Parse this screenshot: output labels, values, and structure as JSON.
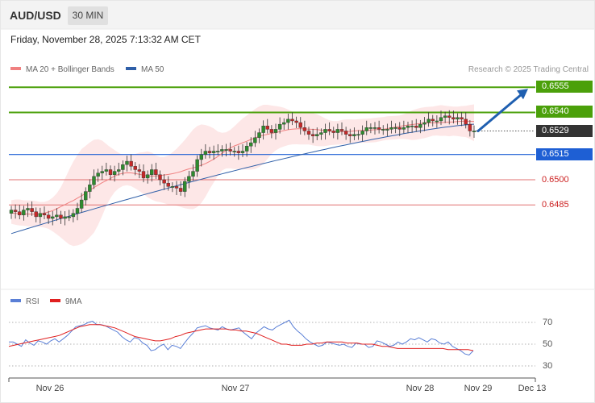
{
  "header": {
    "pair": "AUD/USD",
    "timeframe": "30 MIN"
  },
  "datetime": "Friday, November 28, 2025 7:13:32 AM CET",
  "legend": [
    {
      "label": "MA 20 + Bollinger Bands",
      "color": "#f08080"
    },
    {
      "label": "MA 50",
      "color": "#2f5fa8"
    }
  ],
  "credit": "Research © 2025 Trading Central",
  "levels": [
    {
      "label": "0.6555",
      "value": 0.6555,
      "kind": "resistance",
      "color": "#4ba00a"
    },
    {
      "label": "0.6540",
      "value": 0.654,
      "kind": "resistance",
      "color": "#4ba00a"
    },
    {
      "label": "0.6529",
      "value": 0.6529,
      "kind": "last",
      "color": "#333333"
    },
    {
      "label": "0.6515",
      "value": 0.6515,
      "kind": "pivot",
      "color": "#1e5fd4"
    },
    {
      "label": "0.6500",
      "value": 0.65,
      "kind": "support",
      "color": "#cc2222"
    },
    {
      "label": "0.6485",
      "value": 0.6485,
      "kind": "support",
      "color": "#cc2222"
    }
  ],
  "rsi_legend": [
    {
      "label": "RSI",
      "color": "#5a7fd6"
    },
    {
      "label": "9MA",
      "color": "#e02020"
    }
  ],
  "rsi_ticks": [
    "70",
    "50",
    "30"
  ],
  "x_labels": [
    "Nov 26",
    "Nov 27",
    "Nov 28",
    "Nov 29",
    "Dec 13"
  ],
  "chart_data": {
    "type": "candlestick",
    "symbol": "AUD/USD",
    "interval": "30 MIN",
    "y_range": [
      0.646,
      0.6565
    ],
    "close": [
      0.6482,
      0.6481,
      0.6479,
      0.6482,
      0.6483,
      0.6481,
      0.6478,
      0.648,
      0.6479,
      0.6477,
      0.6478,
      0.6479,
      0.6477,
      0.6478,
      0.6478,
      0.648,
      0.6483,
      0.6488,
      0.6493,
      0.6497,
      0.6502,
      0.6504,
      0.6505,
      0.6506,
      0.6503,
      0.6505,
      0.6506,
      0.6509,
      0.6511,
      0.6508,
      0.6506,
      0.6505,
      0.6501,
      0.6503,
      0.6506,
      0.6503,
      0.65,
      0.6498,
      0.6496,
      0.6496,
      0.6495,
      0.6493,
      0.6499,
      0.6502,
      0.6505,
      0.6512,
      0.6515,
      0.6517,
      0.6516,
      0.6517,
      0.6517,
      0.6518,
      0.6518,
      0.6517,
      0.6517,
      0.6516,
      0.6517,
      0.652,
      0.6522,
      0.6525,
      0.6528,
      0.6532,
      0.653,
      0.6528,
      0.653,
      0.6533,
      0.6534,
      0.6536,
      0.6535,
      0.6534,
      0.6531,
      0.6529,
      0.6527,
      0.6526,
      0.6527,
      0.6528,
      0.653,
      0.6529,
      0.6528,
      0.653,
      0.6529,
      0.6527,
      0.6526,
      0.6527,
      0.6527,
      0.6529,
      0.6531,
      0.6531,
      0.6531,
      0.653,
      0.653,
      0.653,
      0.6531,
      0.6531,
      0.653,
      0.6531,
      0.6532,
      0.6532,
      0.6531,
      0.6533,
      0.6534,
      0.6536,
      0.6535,
      0.6535,
      0.6537,
      0.6538,
      0.6537,
      0.6536,
      0.6537,
      0.6536,
      0.6533,
      0.6529,
      0.6529
    ],
    "ma20_start": 0.6466,
    "ma20_end": 0.6531,
    "ma50_start": 0.6468,
    "ma50_end": 0.6533,
    "forecast": {
      "from": 0.6529,
      "to": 0.6555
    },
    "rsi": {
      "ticks": [
        70,
        50,
        30
      ],
      "rsi_values": [
        52,
        52,
        50,
        48,
        54,
        51,
        49,
        53,
        52,
        50,
        53,
        55,
        52,
        55,
        58,
        62,
        66,
        67,
        68,
        70,
        71,
        68,
        68,
        67,
        65,
        63,
        61,
        57,
        54,
        52,
        56,
        55,
        51,
        49,
        44,
        45,
        48,
        50,
        45,
        49,
        48,
        46,
        51,
        56,
        60,
        65,
        66,
        67,
        65,
        64,
        63,
        66,
        64,
        63,
        64,
        65,
        61,
        58,
        55,
        60,
        63,
        66,
        64,
        63,
        66,
        68,
        70,
        72,
        66,
        62,
        59,
        55,
        52,
        50,
        48,
        49,
        52,
        51,
        50,
        49,
        50,
        48,
        47,
        51,
        50,
        50,
        47,
        48,
        53,
        52,
        50,
        48,
        49,
        52,
        50,
        52,
        55,
        54,
        56,
        54,
        52,
        55,
        54,
        51,
        50,
        52,
        48,
        46,
        44,
        41,
        40,
        44
      ],
      "ma_values": [
        48,
        49,
        50,
        51,
        52,
        53,
        54,
        55,
        56,
        57,
        58,
        60,
        62,
        64,
        66,
        67,
        68,
        68,
        68,
        67,
        66,
        65,
        63,
        61,
        59,
        57,
        56,
        55,
        54,
        53,
        53,
        54,
        55,
        57,
        58,
        60,
        61,
        62,
        63,
        64,
        64,
        64,
        64,
        64,
        63,
        63,
        62,
        62,
        61,
        60,
        58,
        56,
        54,
        52,
        50,
        50,
        49,
        49,
        49,
        50,
        50,
        51,
        51,
        52,
        52,
        52,
        52,
        51,
        51,
        51,
        50,
        50,
        50,
        49,
        48,
        48,
        47,
        46,
        46,
        46,
        46,
        46,
        46,
        46,
        46,
        46,
        46,
        45,
        45,
        45,
        45,
        45,
        44
      ]
    }
  }
}
